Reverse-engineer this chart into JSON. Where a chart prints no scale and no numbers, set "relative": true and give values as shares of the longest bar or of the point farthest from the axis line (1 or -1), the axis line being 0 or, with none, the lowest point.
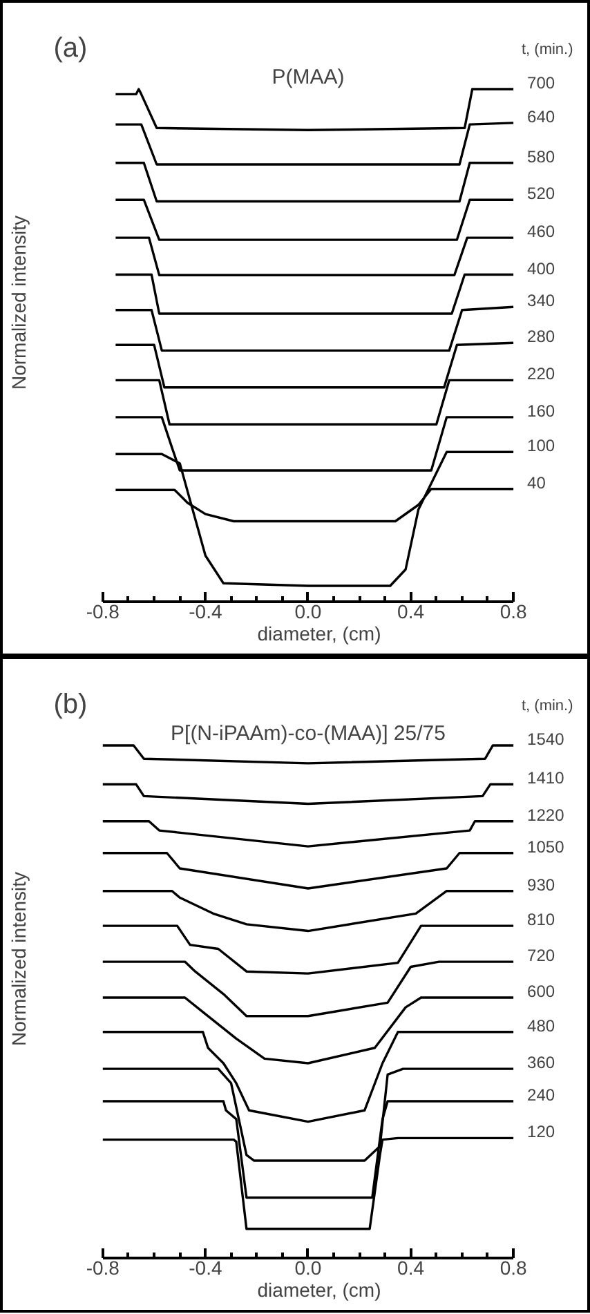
{
  "chart_data": [
    {
      "type": "line",
      "title": "P(MAA)",
      "xlabel": "diameter, (cm)",
      "ylabel": "Normalized intensity",
      "legend_title": "t, (min.)",
      "annotations": [
        "(a)"
      ],
      "relative": true,
      "xlim": [
        -0.8,
        0.8
      ],
      "xticks": [
        -0.8,
        {
          "value": -0.7,
          "label": null
        },
        {
          "value": -0.6,
          "label": null
        },
        {
          "value": -0.5,
          "label": null
        },
        -0.4,
        {
          "value": -0.3,
          "label": null
        },
        {
          "value": -0.2,
          "label": null
        },
        {
          "value": -0.1,
          "label": null
        },
        {
          "value": 0,
          "label": "0.0"
        },
        {
          "value": 0.1,
          "label": null
        },
        {
          "value": 0.2,
          "label": null
        },
        {
          "value": 0.3,
          "label": null
        },
        0.4,
        {
          "value": 0.5,
          "label": null
        },
        {
          "value": 0.6,
          "label": null
        },
        {
          "value": 0.7,
          "label": null
        },
        0.8
      ],
      "series": [
        {
          "name": "700",
          "color": "#000000",
          "x": [
            -0.75,
            -0.67,
            -0.66,
            -0.65,
            -0.59,
            0,
            0.61,
            0.64,
            0.8
          ],
          "values": [
            0.99,
            0.99,
            1.0,
            0.99,
            0.924,
            0.92,
            0.924,
            1.0,
            1.0
          ]
        },
        {
          "name": "640",
          "color": "#000000",
          "x": [
            -0.75,
            -0.65,
            -0.59,
            0,
            0.59,
            0.63,
            0.8
          ],
          "values": [
            0.931,
            0.931,
            0.853,
            0.853,
            0.853,
            0.931,
            0.934
          ]
        },
        {
          "name": "580",
          "color": "#000000",
          "x": [
            -0.75,
            -0.64,
            -0.59,
            0,
            0.59,
            0.63,
            0.8
          ],
          "values": [
            0.856,
            0.856,
            0.781,
            0.781,
            0.781,
            0.856,
            0.856
          ]
        },
        {
          "name": "520",
          "color": "#000000",
          "x": [
            -0.75,
            -0.64,
            -0.58,
            0,
            0.58,
            0.63,
            0.8
          ],
          "values": [
            0.784,
            0.784,
            0.706,
            0.706,
            0.706,
            0.784,
            0.784
          ]
        },
        {
          "name": "460",
          "color": "#000000",
          "x": [
            -0.75,
            -0.62,
            -0.58,
            0,
            0.57,
            0.62,
            0.8
          ],
          "values": [
            0.71,
            0.71,
            0.637,
            0.637,
            0.637,
            0.71,
            0.71
          ]
        },
        {
          "name": "400",
          "color": "#000000",
          "x": [
            -0.75,
            -0.61,
            -0.58,
            0,
            0.56,
            0.61,
            0.8
          ],
          "values": [
            0.638,
            0.638,
            0.562,
            0.562,
            0.562,
            0.638,
            0.638
          ]
        },
        {
          "name": "340",
          "color": "#000000",
          "x": [
            -0.75,
            -0.61,
            -0.57,
            0,
            0.55,
            0.6,
            0.8
          ],
          "values": [
            0.569,
            0.569,
            0.49,
            0.49,
            0.49,
            0.569,
            0.575
          ]
        },
        {
          "name": "280",
          "color": "#000000",
          "x": [
            -0.75,
            -0.6,
            -0.56,
            0,
            0.53,
            0.58,
            0.8
          ],
          "values": [
            0.501,
            0.501,
            0.418,
            0.418,
            0.418,
            0.501,
            0.505
          ]
        },
        {
          "name": "220",
          "color": "#000000",
          "x": [
            -0.75,
            -0.58,
            -0.54,
            0,
            0.5,
            0.55,
            0.8
          ],
          "values": [
            0.432,
            0.432,
            0.346,
            0.346,
            0.346,
            0.432,
            0.432
          ]
        },
        {
          "name": "160",
          "color": "#000000",
          "x": [
            -0.75,
            -0.57,
            -0.53,
            -0.5,
            0,
            0.48,
            0.54,
            0.8
          ],
          "values": [
            0.36,
            0.36,
            0.3,
            0.256,
            0.256,
            0.256,
            0.36,
            0.36
          ]
        },
        {
          "name": "100",
          "color": "#000000",
          "x": [
            -0.75,
            -0.57,
            -0.5,
            -0.45,
            -0.4,
            -0.33,
            0,
            0.32,
            0.38,
            0.43,
            0.54,
            0.8
          ],
          "values": [
            0.288,
            0.288,
            0.27,
            0.18,
            0.09,
            0.036,
            0.031,
            0.031,
            0.063,
            0.18,
            0.292,
            0.292
          ]
        },
        {
          "name": "40",
          "color": "#000000",
          "x": [
            -0.75,
            -0.52,
            -0.47,
            -0.4,
            -0.29,
            0,
            0.34,
            0.43,
            0.48,
            0.8
          ],
          "values": [
            0.218,
            0.218,
            0.193,
            0.171,
            0.157,
            0.157,
            0.157,
            0.189,
            0.22,
            0.22
          ]
        }
      ]
    },
    {
      "type": "line",
      "title": "P[(N-iPAAm)-co-(MAA)] 25/75",
      "xlabel": "diameter, (cm)",
      "ylabel": "Normalized intensity",
      "legend_title": "t, (min.)",
      "annotations": [
        "(b)"
      ],
      "relative": true,
      "xlim": [
        -0.8,
        0.8
      ],
      "xticks": [
        -0.8,
        {
          "value": -0.7,
          "label": null
        },
        {
          "value": -0.6,
          "label": null
        },
        {
          "value": -0.5,
          "label": null
        },
        -0.4,
        {
          "value": -0.3,
          "label": null
        },
        {
          "value": -0.2,
          "label": null
        },
        {
          "value": -0.1,
          "label": null
        },
        {
          "value": 0,
          "label": "0.0"
        },
        {
          "value": 0.1,
          "label": null
        },
        {
          "value": 0.2,
          "label": null
        },
        {
          "value": 0.3,
          "label": null
        },
        0.4,
        {
          "value": 0.5,
          "label": null
        },
        {
          "value": 0.6,
          "label": null
        },
        {
          "value": 0.7,
          "label": null
        },
        0.8
      ],
      "series": [
        {
          "name": "1540",
          "color": "#000000",
          "x": [
            -0.8,
            -0.68,
            -0.64,
            0,
            0.69,
            0.72,
            0.8
          ],
          "values": [
            1.0,
            1.0,
            0.974,
            0.965,
            0.974,
            1.0,
            1.0
          ]
        },
        {
          "name": "1410",
          "color": "#000000",
          "x": [
            -0.8,
            -0.67,
            -0.64,
            0,
            0.68,
            0.71,
            0.8
          ],
          "values": [
            0.924,
            0.924,
            0.901,
            0.886,
            0.901,
            0.924,
            0.924
          ]
        },
        {
          "name": "1220",
          "color": "#000000",
          "x": [
            -0.8,
            -0.62,
            -0.58,
            0,
            0.63,
            0.65,
            0.8
          ],
          "values": [
            0.852,
            0.852,
            0.834,
            0.803,
            0.834,
            0.852,
            0.852
          ]
        },
        {
          "name": "1050",
          "color": "#000000",
          "x": [
            -0.8,
            -0.55,
            -0.5,
            0,
            0.54,
            0.59,
            0.8
          ],
          "values": [
            0.79,
            0.79,
            0.76,
            0.721,
            0.76,
            0.79,
            0.79
          ]
        },
        {
          "name": "930",
          "color": "#000000",
          "x": [
            -0.8,
            -0.53,
            -0.5,
            -0.37,
            -0.24,
            0,
            0.42,
            0.54,
            0.8
          ],
          "values": [
            0.716,
            0.716,
            0.703,
            0.672,
            0.651,
            0.638,
            0.672,
            0.716,
            0.716
          ]
        },
        {
          "name": "810",
          "color": "#000000",
          "x": [
            -0.8,
            -0.51,
            -0.46,
            -0.35,
            -0.24,
            0,
            0.35,
            0.44,
            0.8
          ],
          "values": [
            0.648,
            0.648,
            0.611,
            0.603,
            0.559,
            0.555,
            0.576,
            0.648,
            0.648
          ]
        },
        {
          "name": "720",
          "color": "#000000",
          "x": [
            -0.8,
            -0.48,
            -0.44,
            -0.33,
            -0.24,
            0,
            0.31,
            0.4,
            0.51,
            0.8
          ],
          "values": [
            0.578,
            0.578,
            0.559,
            0.515,
            0.472,
            0.472,
            0.498,
            0.568,
            0.578,
            0.578
          ]
        },
        {
          "name": "600",
          "color": "#000000",
          "x": [
            -0.8,
            -0.48,
            -0.41,
            -0.28,
            -0.17,
            0,
            0.26,
            0.38,
            0.44,
            0.8
          ],
          "values": [
            0.508,
            0.508,
            0.48,
            0.428,
            0.389,
            0.38,
            0.41,
            0.489,
            0.508,
            0.508
          ]
        },
        {
          "name": "480",
          "color": "#000000",
          "x": [
            -0.8,
            -0.41,
            -0.39,
            -0.33,
            -0.28,
            -0.23,
            0,
            0.22,
            0.29,
            0.35,
            0.8
          ],
          "values": [
            0.441,
            0.441,
            0.41,
            0.38,
            0.341,
            0.288,
            0.266,
            0.288,
            0.38,
            0.441,
            0.441
          ]
        },
        {
          "name": "360",
          "color": "#000000",
          "x": [
            -0.8,
            -0.35,
            -0.3,
            -0.24,
            -0.21,
            0,
            0.22,
            0.28,
            0.31,
            0.37,
            0.8
          ],
          "values": [
            0.369,
            0.369,
            0.341,
            0.201,
            0.19,
            0.19,
            0.19,
            0.218,
            0.358,
            0.369,
            0.369
          ]
        },
        {
          "name": "240",
          "color": "#000000",
          "x": [
            -0.8,
            -0.33,
            -0.32,
            -0.28,
            -0.24,
            0,
            0.25,
            0.29,
            0.31,
            0.8
          ],
          "values": [
            0.306,
            0.306,
            0.288,
            0.271,
            0.118,
            0.118,
            0.118,
            0.271,
            0.306,
            0.306
          ]
        },
        {
          "name": "120",
          "color": "#000000",
          "x": [
            -0.8,
            -0.29,
            -0.28,
            -0.24,
            0,
            0.24,
            0.28,
            0.29,
            0.35,
            0.8
          ],
          "values": [
            0.231,
            0.231,
            0.227,
            0.057,
            0.057,
            0.057,
            0.201,
            0.231,
            0.234,
            0.234
          ]
        }
      ]
    }
  ]
}
